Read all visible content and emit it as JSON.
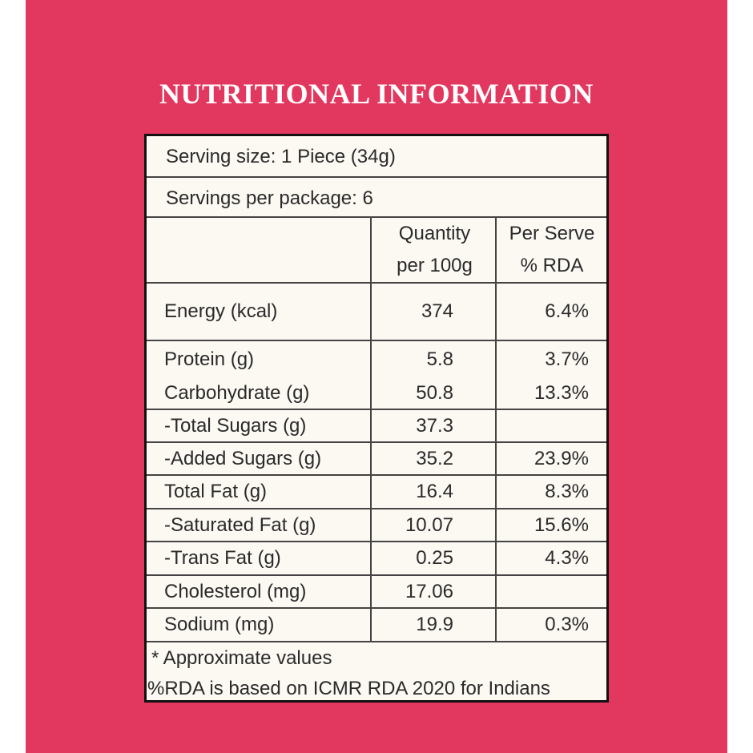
{
  "title": "NUTRITIONAL INFORMATION",
  "serving_size": "Serving size: 1 Piece (34g)",
  "servings_per_package": "Servings per package: 6",
  "headers": {
    "quantity_line1": "Quantity",
    "quantity_line2": "per 100g",
    "rda_line1": "Per Serve",
    "rda_line2": "% RDA"
  },
  "rows": [
    {
      "name": "Energy (kcal)",
      "quantity": "374",
      "rda": "6.4%"
    },
    {
      "name": "Protein (g)",
      "quantity": "5.8",
      "rda": "3.7%"
    },
    {
      "name": "Carbohydrate (g)",
      "quantity": "50.8",
      "rda": "13.3%"
    },
    {
      "name": "-Total Sugars (g)",
      "quantity": "37.3",
      "rda": ""
    },
    {
      "name": "-Added Sugars (g)",
      "quantity": "35.2",
      "rda": "23.9%"
    },
    {
      "name": "Total Fat (g)",
      "quantity": "16.4",
      "rda": "8.3%"
    },
    {
      "name": "-Saturated Fat (g)",
      "quantity": "10.07",
      "rda": "15.6%"
    },
    {
      "name": "-Trans Fat (g)",
      "quantity": "0.25",
      "rda": "4.3%"
    },
    {
      "name": "Cholesterol (mg)",
      "quantity": "17.06",
      "rda": ""
    },
    {
      "name": "Sodium (mg)",
      "quantity": "19.9",
      "rda": "0.3%"
    }
  ],
  "footnotes": {
    "line1": "* Approximate values",
    "line2": "%RDA is based on ICMR RDA 2020 for Indians"
  },
  "colors": {
    "background": "#e2375e",
    "label": "#fcf9f3",
    "text": "#2a2a2a"
  }
}
